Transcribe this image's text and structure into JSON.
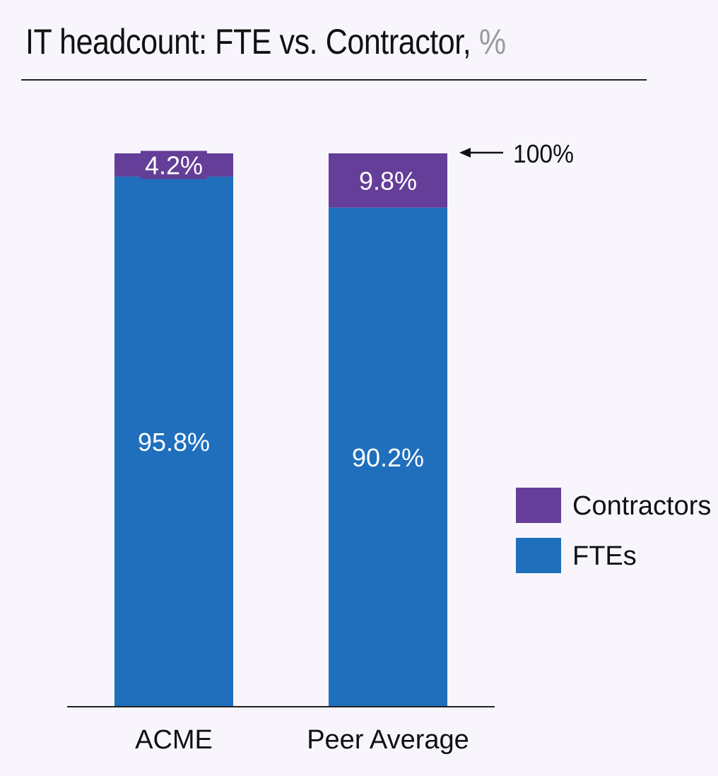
{
  "title": {
    "main": "IT headcount: FTE vs. Contractor,",
    "unit": "%"
  },
  "chart_data": {
    "type": "bar",
    "stacked": true,
    "categories": [
      "ACME",
      "Peer Average"
    ],
    "series": [
      {
        "name": "FTEs",
        "values": [
          95.8,
          90.2
        ],
        "labels": [
          "95.8%",
          "90.2%"
        ],
        "color": "#1f6fbd"
      },
      {
        "name": "Contractors",
        "values": [
          4.2,
          9.8
        ],
        "labels": [
          "4.2%",
          "9.8%"
        ],
        "color": "#643e98"
      }
    ],
    "ylim": [
      0,
      100
    ],
    "legend_position": "right",
    "annotation": "100%",
    "grid": false
  }
}
